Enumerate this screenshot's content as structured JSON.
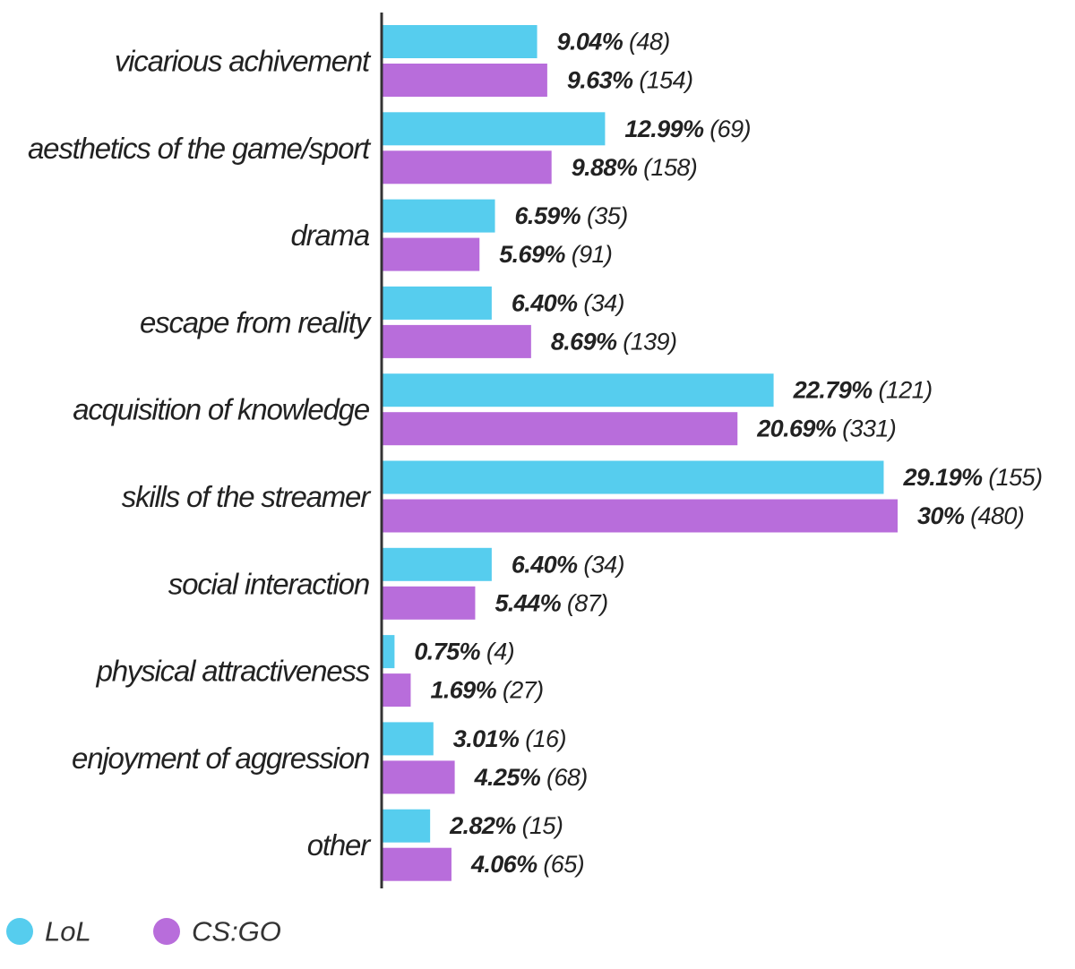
{
  "chart_data": {
    "type": "bar",
    "orientation": "horizontal",
    "categories": [
      "vicarious achivement",
      "aesthetics of the game/sport",
      "drama",
      "escape from reality",
      "acquisition of knowledge",
      "skills of the streamer",
      "social interaction",
      "physical attractiveness",
      "enjoyment of aggression",
      "other"
    ],
    "series": [
      {
        "name": "LoL",
        "color": "#56CDEE",
        "values": [
          9.04,
          12.99,
          6.59,
          6.4,
          22.79,
          29.19,
          6.4,
          0.75,
          3.01,
          2.82
        ],
        "value_labels": [
          "9.04%",
          "12.99%",
          "6.59%",
          "6.40%",
          "22.79%",
          "29.19%",
          "6.40%",
          "0.75%",
          "3.01%",
          "2.82%"
        ],
        "counts": [
          "(48)",
          "(69)",
          "(35)",
          "(34)",
          "(121)",
          "(155)",
          "(34)",
          "(4)",
          "(16)",
          "(15)"
        ]
      },
      {
        "name": "CS:GO",
        "color": "#B86DDB",
        "values": [
          9.63,
          9.88,
          5.69,
          8.69,
          20.69,
          30.0,
          5.44,
          1.69,
          4.25,
          4.06
        ],
        "value_labels": [
          "9.63%",
          "9.88%",
          "5.69%",
          "8.69%",
          "20.69%",
          "30%",
          "5.44%",
          "1.69%",
          "4.25%",
          "4.06%"
        ],
        "counts": [
          "(154)",
          "(158)",
          "(91)",
          "(139)",
          "(331)",
          "(480)",
          "(87)",
          "(27)",
          "(68)",
          "(65)"
        ]
      }
    ],
    "xlim": [
      0,
      30
    ],
    "grid": false,
    "legend": "bottom-left",
    "title": "",
    "xlabel": "",
    "ylabel": ""
  }
}
